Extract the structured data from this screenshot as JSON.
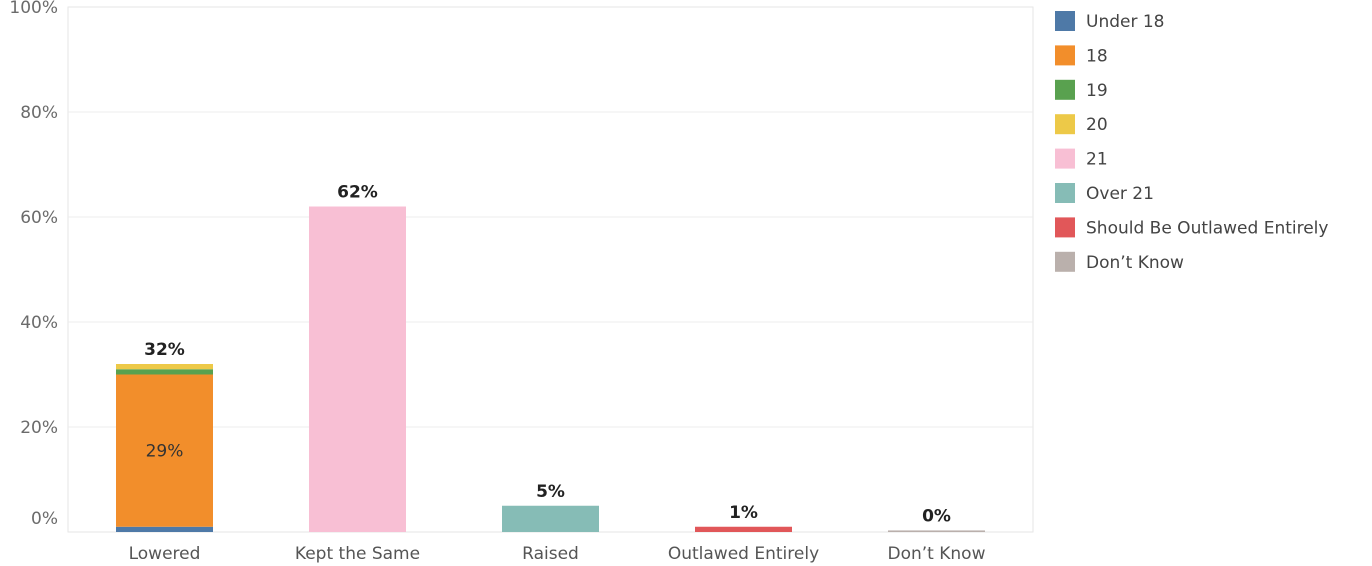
{
  "chart_data": {
    "type": "bar",
    "stacked": true,
    "categories": [
      "Lowered",
      "Kept the Same",
      "Raised",
      "Outlawed Entirely",
      "Don’t Know"
    ],
    "series": [
      {
        "name": "Under 18",
        "color": "#4e79a7",
        "values": [
          1,
          0,
          0,
          0,
          0
        ]
      },
      {
        "name": "18",
        "color": "#f28e2b",
        "values": [
          29,
          0,
          0,
          0,
          0
        ]
      },
      {
        "name": "19",
        "color": "#59a14f",
        "values": [
          1,
          0,
          0,
          0,
          0
        ]
      },
      {
        "name": "20",
        "color": "#edc948",
        "values": [
          1,
          0,
          0,
          0,
          0
        ]
      },
      {
        "name": "21",
        "color": "#f8bfd4",
        "values": [
          0,
          62,
          0,
          0,
          0
        ]
      },
      {
        "name": "Over 21",
        "color": "#86bcb6",
        "values": [
          0,
          0,
          5,
          0,
          0
        ]
      },
      {
        "name": "Should Be Outlawed Entirely",
        "color": "#e15759",
        "values": [
          0,
          0,
          0,
          1,
          0
        ]
      },
      {
        "name": "Don’t Know",
        "color": "#bab0ac",
        "values": [
          0,
          0,
          0,
          0,
          0.3
        ]
      }
    ],
    "totals": [
      "32%",
      "62%",
      "5%",
      "1%",
      "0%"
    ],
    "segment_labels": [
      {
        "category": "Lowered",
        "series": "18",
        "label": "29%"
      }
    ],
    "yticks": [
      "0%",
      "20%",
      "40%",
      "60%",
      "80%",
      "100%"
    ],
    "ylim": [
      0,
      100
    ],
    "grid": true,
    "legend_position": "right"
  }
}
